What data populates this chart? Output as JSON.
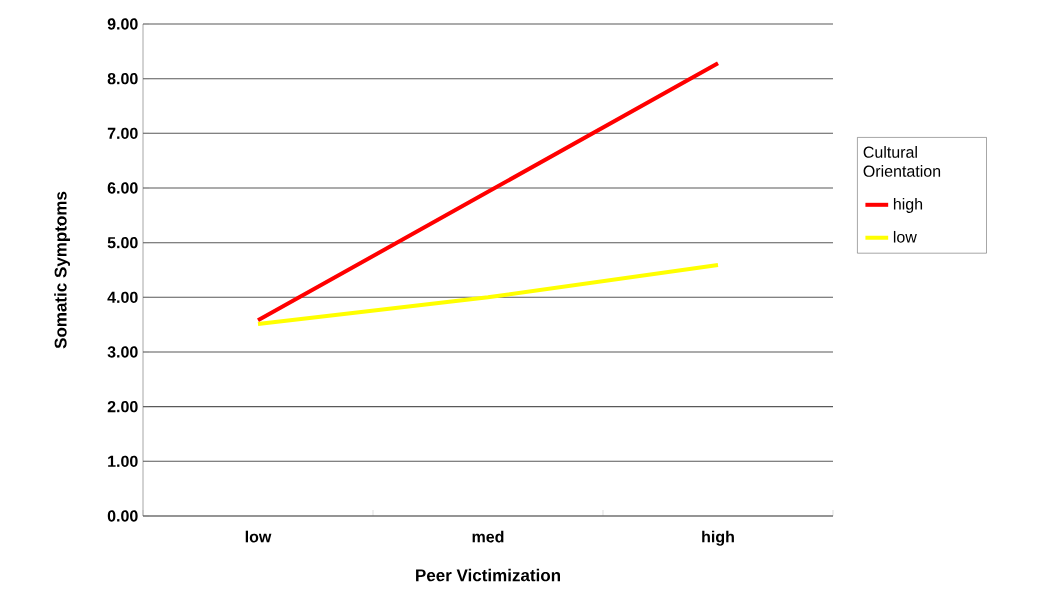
{
  "chart_data": {
    "type": "line",
    "xlabel": "Peer Victimization",
    "ylabel": "Somatic Symptoms",
    "legend_title": "Cultural Orientation",
    "categories": [
      "low",
      "med",
      "high"
    ],
    "series": [
      {
        "name": "high",
        "color": "#ff0000",
        "values": [
          3.58,
          5.93,
          8.28
        ]
      },
      {
        "name": "low",
        "color": "#ffff00",
        "values": [
          3.51,
          4.0,
          4.59
        ]
      }
    ],
    "ylim": [
      0,
      9
    ],
    "yticks": [
      {
        "value": 0,
        "label": "0.00"
      },
      {
        "value": 1,
        "label": "1.00"
      },
      {
        "value": 2,
        "label": "2.00"
      },
      {
        "value": 3,
        "label": "3.00"
      },
      {
        "value": 4,
        "label": "4.00"
      },
      {
        "value": 5,
        "label": "5.00"
      },
      {
        "value": 6,
        "label": "6.00"
      },
      {
        "value": 7,
        "label": "7.00"
      },
      {
        "value": 8,
        "label": "8.00"
      },
      {
        "value": 9,
        "label": "9.00"
      }
    ],
    "grid": "y",
    "legend": "right",
    "marker": "none",
    "line_style": "solid"
  }
}
